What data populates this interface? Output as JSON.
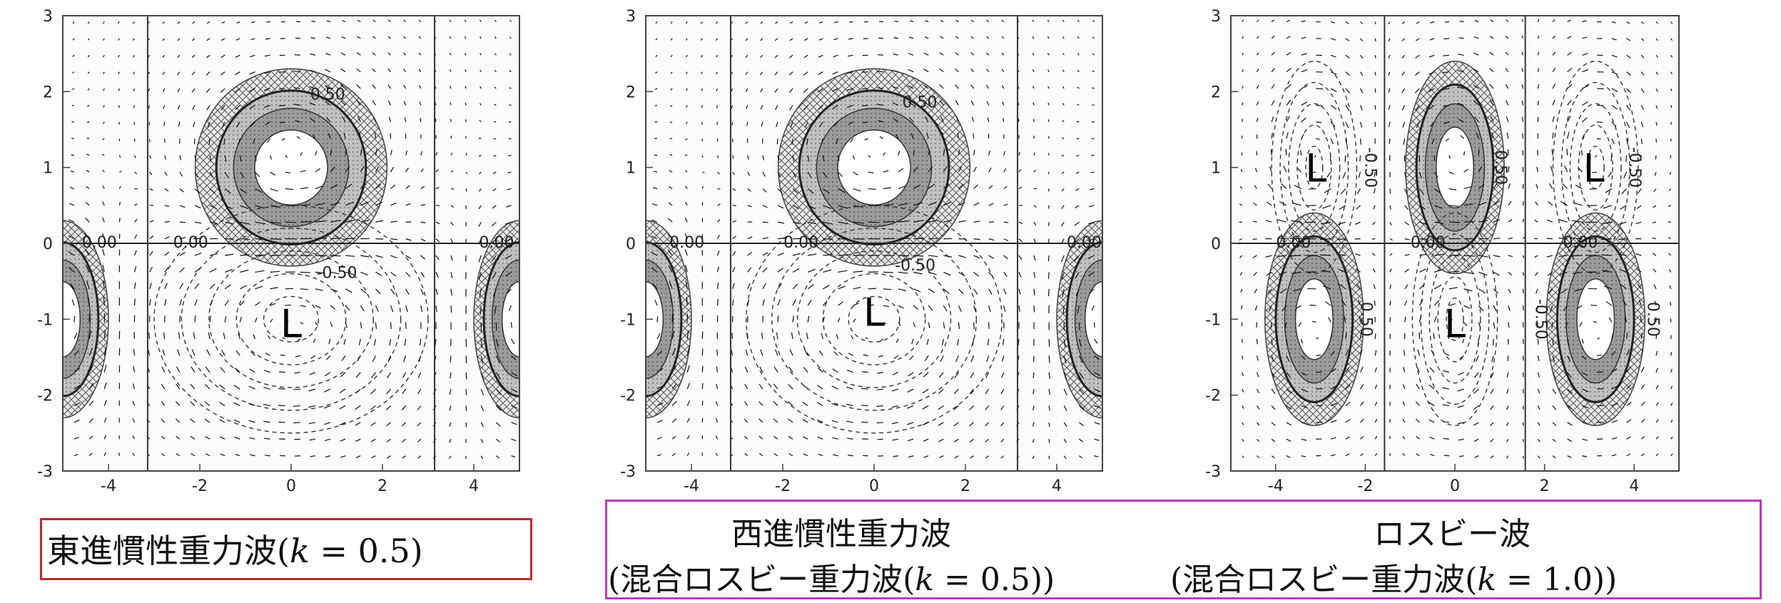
{
  "figure": {
    "panels": [
      {
        "id": "eastward",
        "lows": [
          "L"
        ],
        "contour_labels": [
          "0.50",
          "0.00",
          "0.00",
          "0.00",
          "-0.50"
        ]
      },
      {
        "id": "westward",
        "lows": [
          "L"
        ],
        "contour_labels": [
          "0.50",
          "0.00",
          "0.00",
          "0.00",
          "-0.50"
        ]
      },
      {
        "id": "rossby",
        "lows": [
          "L",
          "L",
          "L"
        ],
        "contour_labels": [
          "0.00",
          "0.00",
          "0.00",
          "0.50",
          "-0.50",
          "-0.50",
          "0.50",
          "-0.50",
          "0.50"
        ]
      }
    ],
    "x_ticks": [
      "-4",
      "-2",
      "0",
      "2",
      "4"
    ],
    "y_ticks": [
      "3",
      "2",
      "1",
      "0",
      "-1",
      "-2",
      "-3"
    ],
    "axis_ranges": {
      "x": [
        -5,
        5
      ],
      "y": [
        -3,
        3
      ]
    },
    "colors": {
      "red_box": "#c0282d",
      "purple_box": "#b83bbf",
      "shade_dark": "#8d8d8d",
      "shade_mid": "#b8b8b8",
      "hatch": "#555555"
    }
  },
  "captions": {
    "left": {
      "prefix": "東進慣性重力波(",
      "k": "k",
      "suffix": " = 0.5)"
    },
    "middle_line1": "西進慣性重力波",
    "middle_line2": {
      "prefix": "(混合ロスビー重力波(",
      "k": "k",
      "suffix": " = 0.5))"
    },
    "right_line1": "ロスビー波",
    "right_line2": {
      "prefix": "(混合ロスビー重力波(",
      "k": "k",
      "suffix": " = 1.0))"
    }
  }
}
